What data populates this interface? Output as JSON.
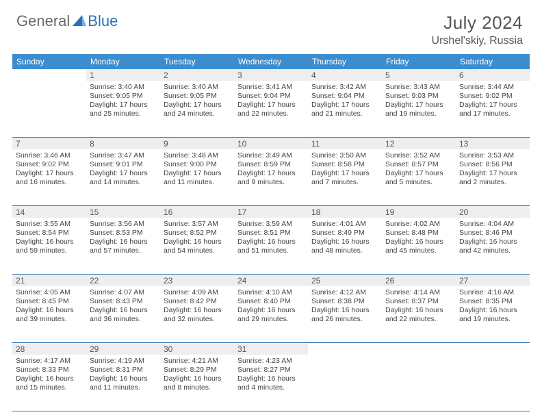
{
  "brand": {
    "part1": "General",
    "part2": "Blue"
  },
  "title": "July 2024",
  "location": "Urshel'skiy, Russia",
  "colors": {
    "header_bg": "#3b8dd0",
    "border": "#2a72b5",
    "daynum_bg": "#eeeeee",
    "text": "#444444",
    "title": "#555555"
  },
  "dayNames": [
    "Sunday",
    "Monday",
    "Tuesday",
    "Wednesday",
    "Thursday",
    "Friday",
    "Saturday"
  ],
  "weeks": [
    [
      null,
      {
        "n": "1",
        "sunrise": "Sunrise: 3:40 AM",
        "sunset": "Sunset: 9:05 PM",
        "day1": "Daylight: 17 hours",
        "day2": "and 25 minutes."
      },
      {
        "n": "2",
        "sunrise": "Sunrise: 3:40 AM",
        "sunset": "Sunset: 9:05 PM",
        "day1": "Daylight: 17 hours",
        "day2": "and 24 minutes."
      },
      {
        "n": "3",
        "sunrise": "Sunrise: 3:41 AM",
        "sunset": "Sunset: 9:04 PM",
        "day1": "Daylight: 17 hours",
        "day2": "and 22 minutes."
      },
      {
        "n": "4",
        "sunrise": "Sunrise: 3:42 AM",
        "sunset": "Sunset: 9:04 PM",
        "day1": "Daylight: 17 hours",
        "day2": "and 21 minutes."
      },
      {
        "n": "5",
        "sunrise": "Sunrise: 3:43 AM",
        "sunset": "Sunset: 9:03 PM",
        "day1": "Daylight: 17 hours",
        "day2": "and 19 minutes."
      },
      {
        "n": "6",
        "sunrise": "Sunrise: 3:44 AM",
        "sunset": "Sunset: 9:02 PM",
        "day1": "Daylight: 17 hours",
        "day2": "and 17 minutes."
      }
    ],
    [
      {
        "n": "7",
        "sunrise": "Sunrise: 3:46 AM",
        "sunset": "Sunset: 9:02 PM",
        "day1": "Daylight: 17 hours",
        "day2": "and 16 minutes."
      },
      {
        "n": "8",
        "sunrise": "Sunrise: 3:47 AM",
        "sunset": "Sunset: 9:01 PM",
        "day1": "Daylight: 17 hours",
        "day2": "and 14 minutes."
      },
      {
        "n": "9",
        "sunrise": "Sunrise: 3:48 AM",
        "sunset": "Sunset: 9:00 PM",
        "day1": "Daylight: 17 hours",
        "day2": "and 11 minutes."
      },
      {
        "n": "10",
        "sunrise": "Sunrise: 3:49 AM",
        "sunset": "Sunset: 8:59 PM",
        "day1": "Daylight: 17 hours",
        "day2": "and 9 minutes."
      },
      {
        "n": "11",
        "sunrise": "Sunrise: 3:50 AM",
        "sunset": "Sunset: 8:58 PM",
        "day1": "Daylight: 17 hours",
        "day2": "and 7 minutes."
      },
      {
        "n": "12",
        "sunrise": "Sunrise: 3:52 AM",
        "sunset": "Sunset: 8:57 PM",
        "day1": "Daylight: 17 hours",
        "day2": "and 5 minutes."
      },
      {
        "n": "13",
        "sunrise": "Sunrise: 3:53 AM",
        "sunset": "Sunset: 8:56 PM",
        "day1": "Daylight: 17 hours",
        "day2": "and 2 minutes."
      }
    ],
    [
      {
        "n": "14",
        "sunrise": "Sunrise: 3:55 AM",
        "sunset": "Sunset: 8:54 PM",
        "day1": "Daylight: 16 hours",
        "day2": "and 59 minutes."
      },
      {
        "n": "15",
        "sunrise": "Sunrise: 3:56 AM",
        "sunset": "Sunset: 8:53 PM",
        "day1": "Daylight: 16 hours",
        "day2": "and 57 minutes."
      },
      {
        "n": "16",
        "sunrise": "Sunrise: 3:57 AM",
        "sunset": "Sunset: 8:52 PM",
        "day1": "Daylight: 16 hours",
        "day2": "and 54 minutes."
      },
      {
        "n": "17",
        "sunrise": "Sunrise: 3:59 AM",
        "sunset": "Sunset: 8:51 PM",
        "day1": "Daylight: 16 hours",
        "day2": "and 51 minutes."
      },
      {
        "n": "18",
        "sunrise": "Sunrise: 4:01 AM",
        "sunset": "Sunset: 8:49 PM",
        "day1": "Daylight: 16 hours",
        "day2": "and 48 minutes."
      },
      {
        "n": "19",
        "sunrise": "Sunrise: 4:02 AM",
        "sunset": "Sunset: 8:48 PM",
        "day1": "Daylight: 16 hours",
        "day2": "and 45 minutes."
      },
      {
        "n": "20",
        "sunrise": "Sunrise: 4:04 AM",
        "sunset": "Sunset: 8:46 PM",
        "day1": "Daylight: 16 hours",
        "day2": "and 42 minutes."
      }
    ],
    [
      {
        "n": "21",
        "sunrise": "Sunrise: 4:05 AM",
        "sunset": "Sunset: 8:45 PM",
        "day1": "Daylight: 16 hours",
        "day2": "and 39 minutes."
      },
      {
        "n": "22",
        "sunrise": "Sunrise: 4:07 AM",
        "sunset": "Sunset: 8:43 PM",
        "day1": "Daylight: 16 hours",
        "day2": "and 36 minutes."
      },
      {
        "n": "23",
        "sunrise": "Sunrise: 4:09 AM",
        "sunset": "Sunset: 8:42 PM",
        "day1": "Daylight: 16 hours",
        "day2": "and 32 minutes."
      },
      {
        "n": "24",
        "sunrise": "Sunrise: 4:10 AM",
        "sunset": "Sunset: 8:40 PM",
        "day1": "Daylight: 16 hours",
        "day2": "and 29 minutes."
      },
      {
        "n": "25",
        "sunrise": "Sunrise: 4:12 AM",
        "sunset": "Sunset: 8:38 PM",
        "day1": "Daylight: 16 hours",
        "day2": "and 26 minutes."
      },
      {
        "n": "26",
        "sunrise": "Sunrise: 4:14 AM",
        "sunset": "Sunset: 8:37 PM",
        "day1": "Daylight: 16 hours",
        "day2": "and 22 minutes."
      },
      {
        "n": "27",
        "sunrise": "Sunrise: 4:16 AM",
        "sunset": "Sunset: 8:35 PM",
        "day1": "Daylight: 16 hours",
        "day2": "and 19 minutes."
      }
    ],
    [
      {
        "n": "28",
        "sunrise": "Sunrise: 4:17 AM",
        "sunset": "Sunset: 8:33 PM",
        "day1": "Daylight: 16 hours",
        "day2": "and 15 minutes."
      },
      {
        "n": "29",
        "sunrise": "Sunrise: 4:19 AM",
        "sunset": "Sunset: 8:31 PM",
        "day1": "Daylight: 16 hours",
        "day2": "and 11 minutes."
      },
      {
        "n": "30",
        "sunrise": "Sunrise: 4:21 AM",
        "sunset": "Sunset: 8:29 PM",
        "day1": "Daylight: 16 hours",
        "day2": "and 8 minutes."
      },
      {
        "n": "31",
        "sunrise": "Sunrise: 4:23 AM",
        "sunset": "Sunset: 8:27 PM",
        "day1": "Daylight: 16 hours",
        "day2": "and 4 minutes."
      },
      null,
      null,
      null
    ]
  ]
}
